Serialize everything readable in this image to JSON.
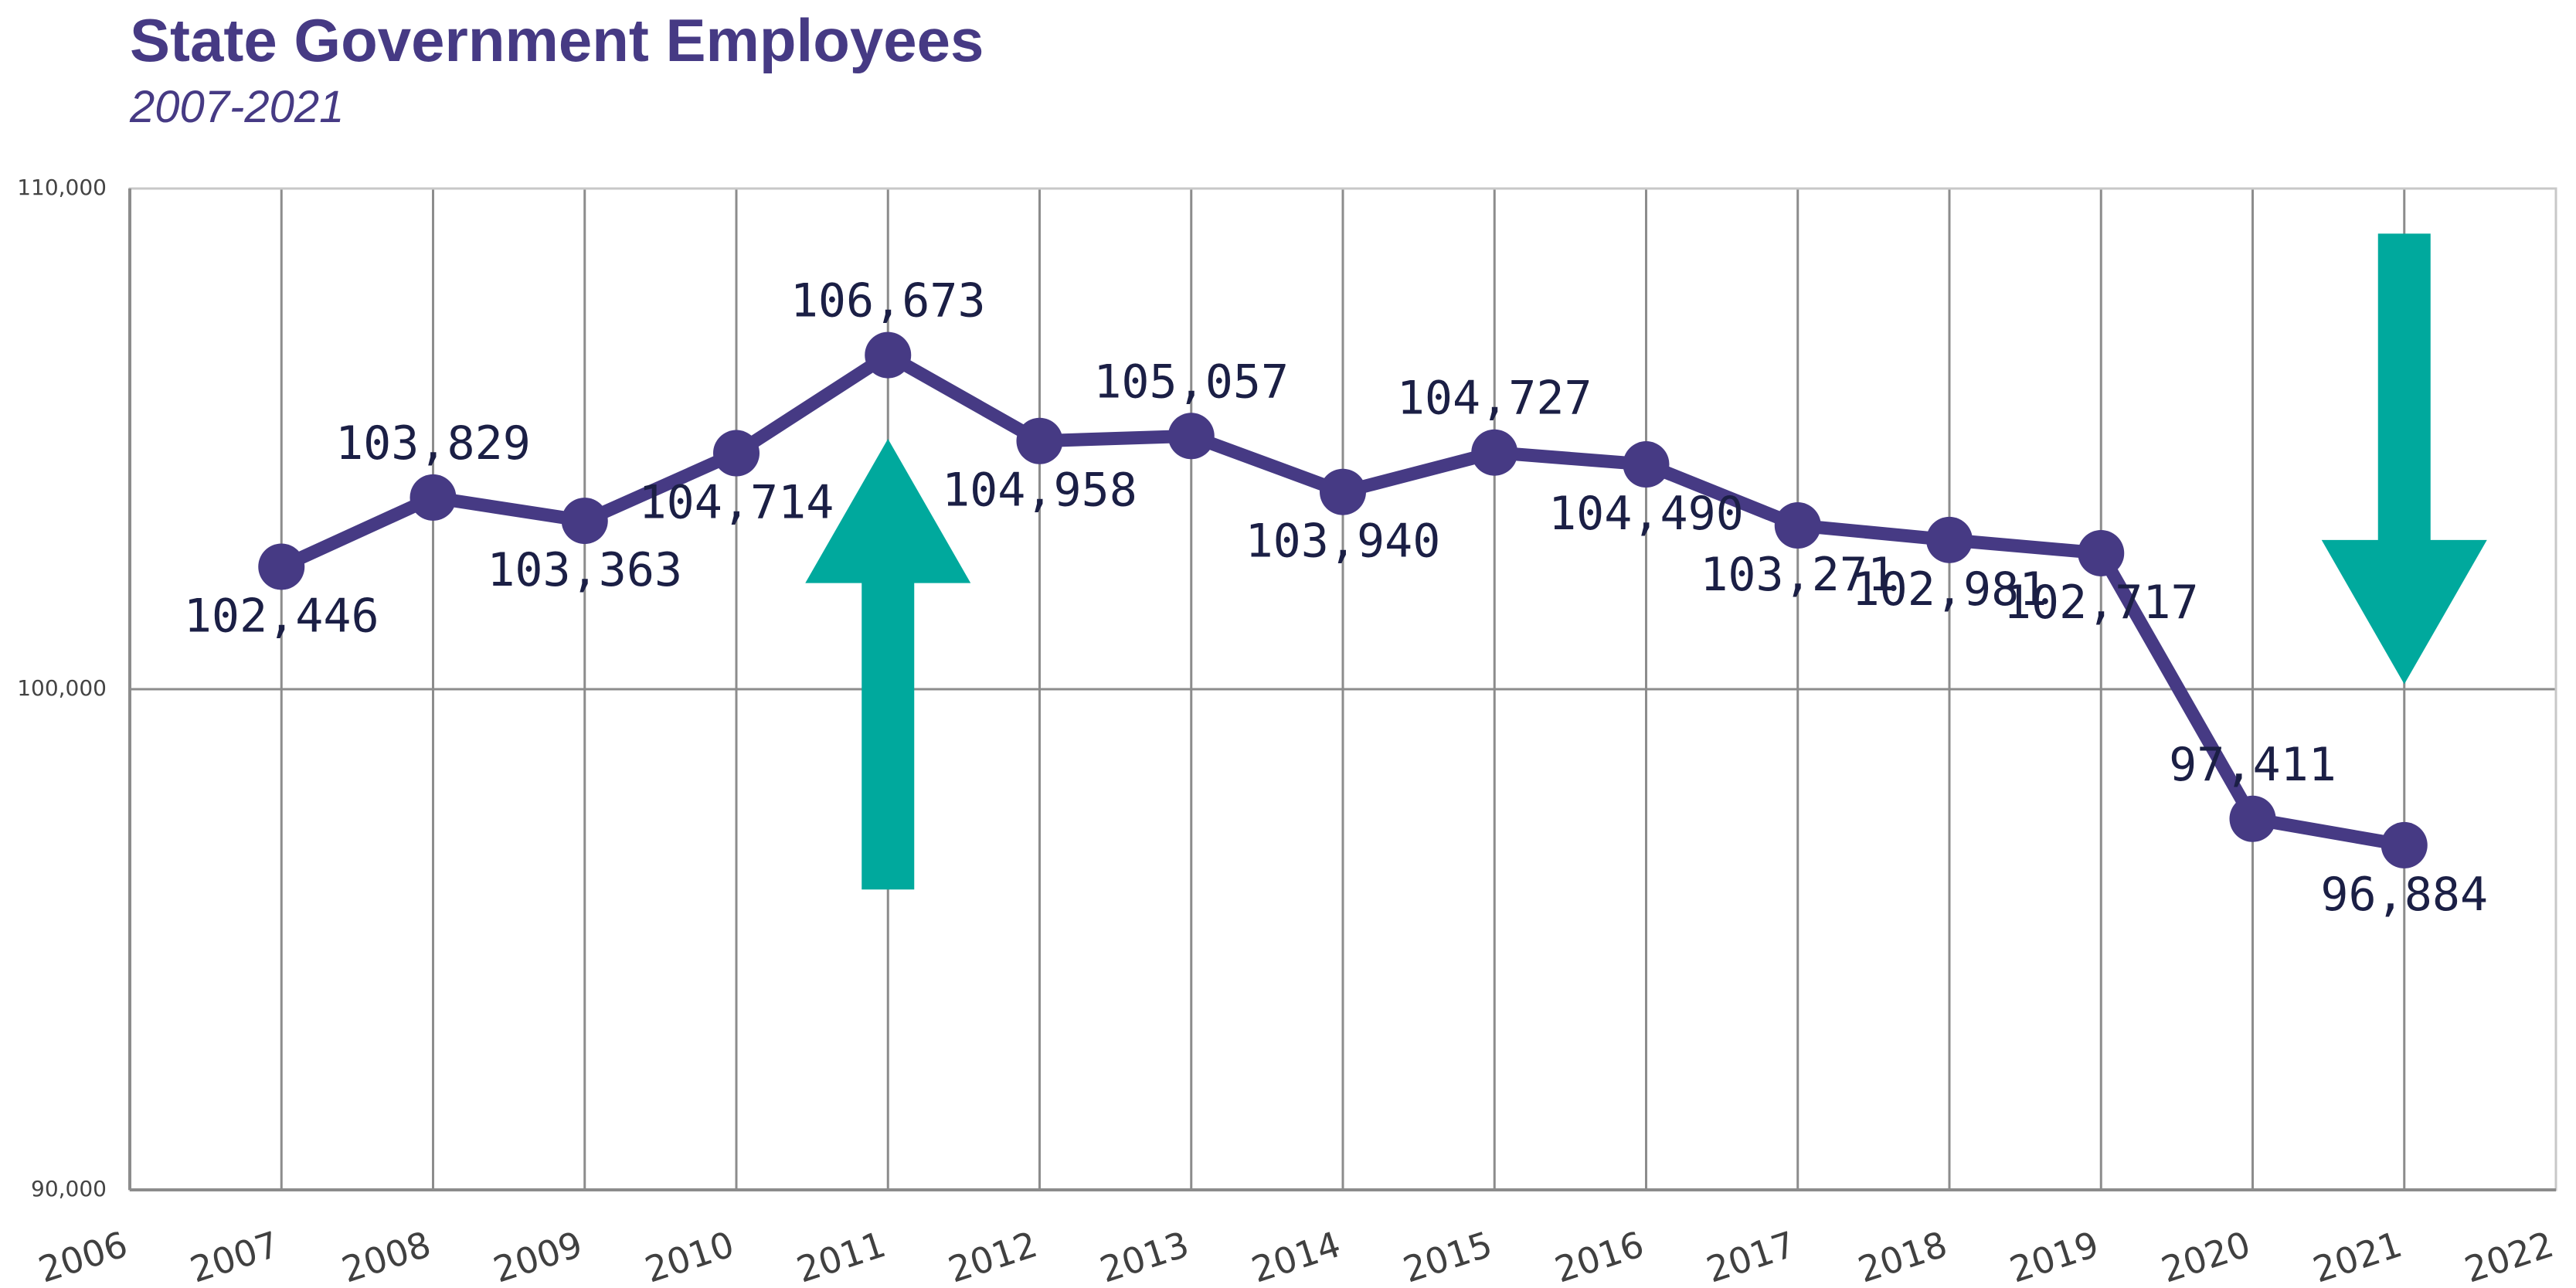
{
  "header": {
    "title": "State Government Employees",
    "subtitle": "2007-2021"
  },
  "colors": {
    "title": "#463a84",
    "line": "#463a84",
    "arrow": "#00a99d",
    "grid": "#8c8c8c",
    "label": "#1b1f45"
  },
  "chart_data": {
    "type": "line",
    "title": "State Government Employees",
    "subtitle": "2007-2021",
    "xlabel": "",
    "ylabel": "",
    "xlim": [
      2006,
      2022
    ],
    "ylim": [
      90000,
      110000
    ],
    "grid": true,
    "x_ticks": [
      "2006",
      "2007",
      "2008",
      "2009",
      "2010",
      "2011",
      "2012",
      "2013",
      "2014",
      "2015",
      "2016",
      "2017",
      "2018",
      "2019",
      "2020",
      "2021",
      "2022"
    ],
    "y_ticks": [
      "110,000",
      "100,000",
      "90,000"
    ],
    "x": [
      2007,
      2008,
      2009,
      2010,
      2011,
      2012,
      2013,
      2014,
      2015,
      2016,
      2017,
      2018,
      2019,
      2020,
      2021
    ],
    "series": [
      {
        "values": [
          102446,
          103829,
          103363,
          104714,
          106673,
          104958,
          105057,
          103940,
          104727,
          104490,
          103271,
          102981,
          102717,
          97411,
          96884
        ],
        "labels": [
          "102,446",
          "103,829",
          "103,363",
          "104,714",
          "106,673",
          "104,958",
          "105,057",
          "103,940",
          "104,727",
          "104,490",
          "103,271",
          "102,981",
          "102,717",
          "97,411",
          "96,884"
        ]
      }
    ],
    "annotations": [
      {
        "type": "arrow",
        "direction": "up",
        "at_x": 2011,
        "from_y": 96000,
        "to_y": 105000
      },
      {
        "type": "arrow",
        "direction": "down",
        "at_x": 2021,
        "from_y": 109100,
        "to_y": 100100
      }
    ]
  }
}
